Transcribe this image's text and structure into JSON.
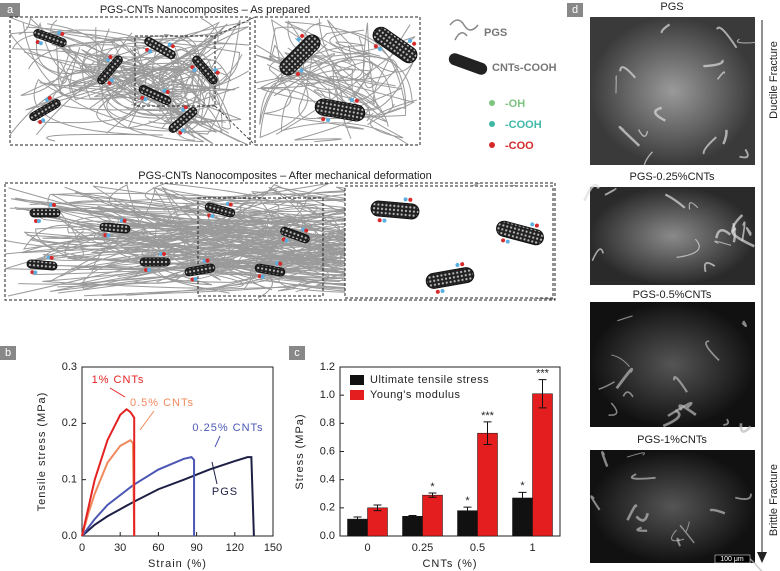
{
  "panel_a": {
    "label": "a",
    "top_title": "PGS-CNTs Nanocomposites – As prepared",
    "bottom_title": "PGS-CNTs Nanocomposites – After mechanical deformation",
    "legend": {
      "pgs": "PGS",
      "cnt": "CNTs-COOH",
      "oh": "-OH",
      "cooh": "-COOH",
      "coo": "-COO"
    }
  },
  "chart_data": [
    {
      "type": "line",
      "panel_label": "b",
      "x_label": "Strain (%)",
      "y_label": "Tensile stress (MPa)",
      "xlim": [
        0,
        150
      ],
      "xticks": [
        0,
        30,
        60,
        90,
        120,
        150
      ],
      "ylim": [
        0,
        0.3
      ],
      "yticks": [
        {
          "value": 0,
          "label": "0.0"
        },
        0.1,
        0.2,
        0.3
      ],
      "series": [
        {
          "name": "PGS",
          "color": "#1d1f45",
          "x": [
            0,
            10,
            20,
            40,
            60,
            80,
            100,
            120,
            130,
            133,
            135
          ],
          "values": [
            0,
            0.02,
            0.035,
            0.06,
            0.083,
            0.1,
            0.118,
            0.133,
            0.14,
            0.14,
            0
          ]
        },
        {
          "name": "0.25% CNTs",
          "color": "#4c57b5",
          "x": [
            0,
            10,
            20,
            40,
            60,
            80,
            86,
            88,
            88
          ],
          "values": [
            0,
            0.03,
            0.055,
            0.09,
            0.118,
            0.137,
            0.14,
            0.135,
            0
          ]
        },
        {
          "name": "0.5% CNTs",
          "color": "#f08a5d",
          "x": [
            0,
            5,
            10,
            20,
            30,
            38,
            40,
            41
          ],
          "values": [
            0,
            0.04,
            0.075,
            0.13,
            0.16,
            0.17,
            0.165,
            0
          ]
        },
        {
          "name": "1% CNTs",
          "color": "#e42222",
          "x": [
            0,
            5,
            10,
            20,
            30,
            35,
            38,
            41,
            41
          ],
          "values": [
            0,
            0.05,
            0.1,
            0.17,
            0.215,
            0.225,
            0.22,
            0.21,
            0
          ]
        }
      ]
    },
    {
      "type": "bar",
      "panel_label": "c",
      "x_label": "CNTs (%)",
      "y_label": "Stress (MPa)",
      "categories": [
        "0",
        "0.25",
        "0.5",
        "1"
      ],
      "ylim": [
        0,
        1.2
      ],
      "yticks": [
        {
          "value": 0,
          "label": "0.0"
        },
        0.2,
        0.4,
        0.6,
        0.8,
        {
          "value": 1,
          "label": "1.0"
        },
        1.2
      ],
      "legend": "top-left",
      "series": [
        {
          "name": "Ultimate tensile stress",
          "color": "#111111",
          "values": [
            0.12,
            0.14,
            0.18,
            0.27
          ],
          "errors": [
            0.015,
            0.006,
            0.025,
            0.04
          ],
          "significance": [
            null,
            null,
            "*",
            "*"
          ]
        },
        {
          "name": "Young's modulus",
          "color": "#e41e1e",
          "values": [
            0.2,
            0.29,
            0.73,
            1.01
          ],
          "errors": [
            0.02,
            0.015,
            0.08,
            0.1
          ],
          "significance": [
            null,
            "*",
            "***",
            "***"
          ]
        }
      ]
    }
  ],
  "panel_d": {
    "label": "d",
    "images": [
      "PGS",
      "PGS-0.25%CNTs",
      "PGS-0.5%CNTs",
      "PGS-1%CNTs"
    ],
    "arrow_top": "Ductile Fracture",
    "arrow_bottom": "Brittle Fracture",
    "scale_bar": "100 μm"
  }
}
